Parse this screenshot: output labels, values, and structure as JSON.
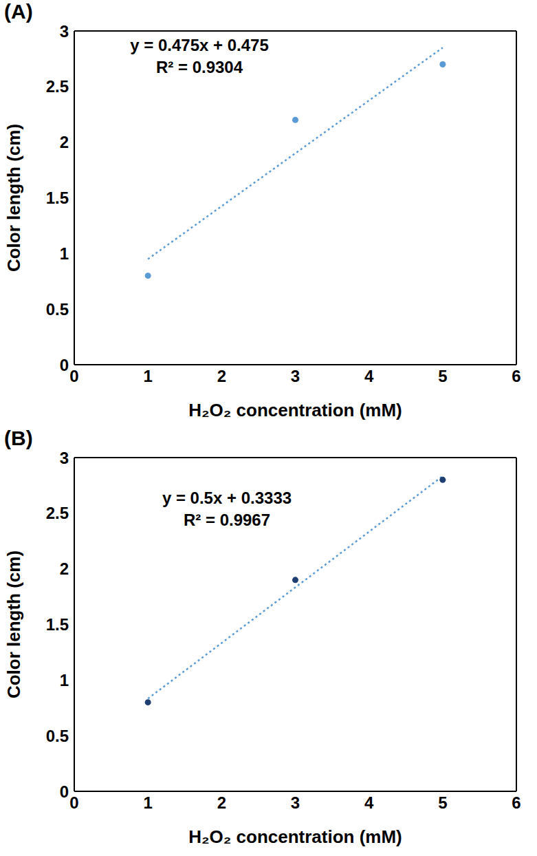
{
  "chart_data": [
    {
      "type": "scatter",
      "title": "(A)",
      "x_label": "H₂O₂ concentration (mM)",
      "y_label": "Color length (cm)",
      "x": [
        1,
        3,
        5
      ],
      "values": [
        0.8,
        2.2,
        2.7
      ],
      "color": "#5b9bd5",
      "marker": "circle",
      "trendline": {
        "slope": 0.475,
        "intercept": 0.475,
        "color": "#5b9bd5",
        "line_style": "dotted"
      },
      "annotations": [
        "y = 0.475x + 0.475",
        "R² = 0.9304"
      ],
      "xlim": [
        0,
        6
      ],
      "xticks": [
        0,
        1,
        2,
        3,
        4,
        5,
        6
      ],
      "ylim": [
        0,
        3
      ],
      "yticks": [
        0,
        0.5,
        1,
        1.5,
        2,
        2.5,
        3
      ],
      "grid": false
    },
    {
      "type": "scatter",
      "title": "(B)",
      "x_label": "H₂O₂ concentration (mM)",
      "y_label": "Color length (cm)",
      "x": [
        1,
        3,
        5
      ],
      "values": [
        0.8,
        1.9,
        2.8
      ],
      "color": "#1f3f73",
      "marker": "circle",
      "trendline": {
        "slope": 0.5,
        "intercept": 0.3333,
        "color": "#5b9bd5",
        "line_style": "dotted"
      },
      "annotations": [
        "y = 0.5x + 0.3333",
        "R² = 0.9967"
      ],
      "xlim": [
        0,
        6
      ],
      "xticks": [
        0,
        1,
        2,
        3,
        4,
        5,
        6
      ],
      "ylim": [
        0,
        3
      ],
      "yticks": [
        0,
        0.5,
        1,
        1.5,
        2,
        2.5,
        3
      ],
      "grid": false
    }
  ]
}
